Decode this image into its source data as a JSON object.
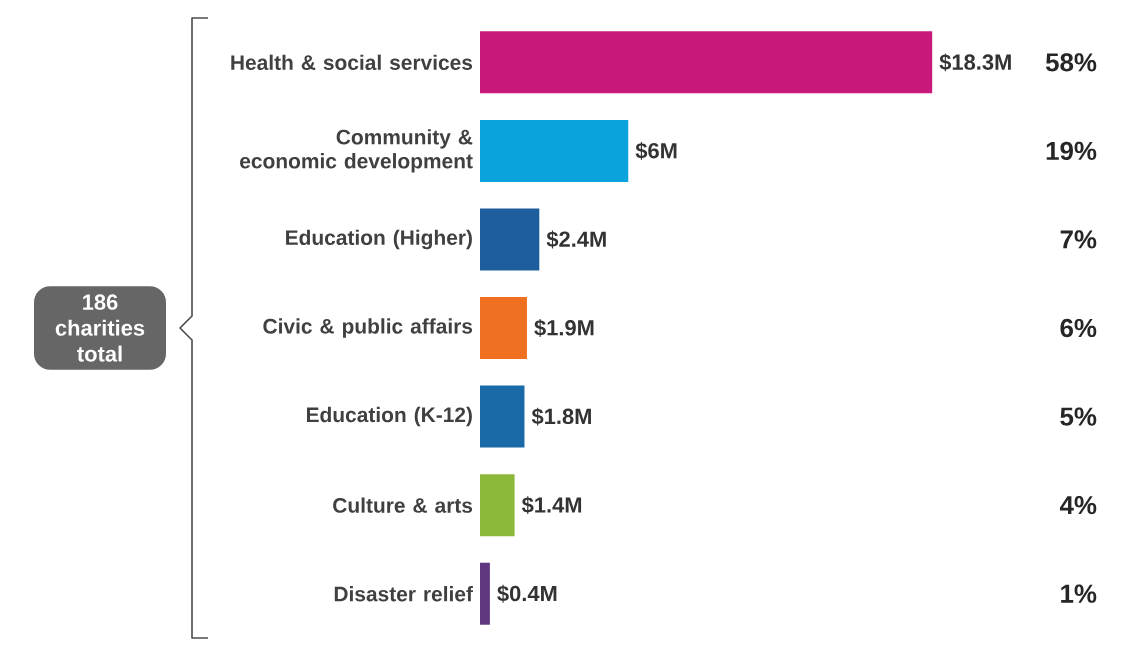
{
  "chart_data": {
    "type": "bar",
    "orientation": "horizontal",
    "categories": [
      "Health & social services",
      "Community & economic development",
      "Education (Higher)",
      "Civic & public affairs",
      "Education (K-12)",
      "Culture & arts",
      "Disaster relief"
    ],
    "values": [
      18.3,
      6,
      2.4,
      1.9,
      1.8,
      1.4,
      0.4
    ],
    "colors": [
      "#c8197b",
      "#0aa3dc",
      "#1f5e9c",
      "#f07021",
      "#1a6aa8",
      "#8cb93a",
      "#5e377e"
    ],
    "value_labels": [
      "$18.3M",
      "$6M",
      "$2.4M",
      "$1.9M",
      "$1.8M",
      "$1.4M",
      "$0.4M"
    ],
    "annotations": [
      "186 charities total",
      "58%",
      "19%",
      "7%",
      "6%",
      "5%",
      "4%",
      "1%"
    ]
  }
}
